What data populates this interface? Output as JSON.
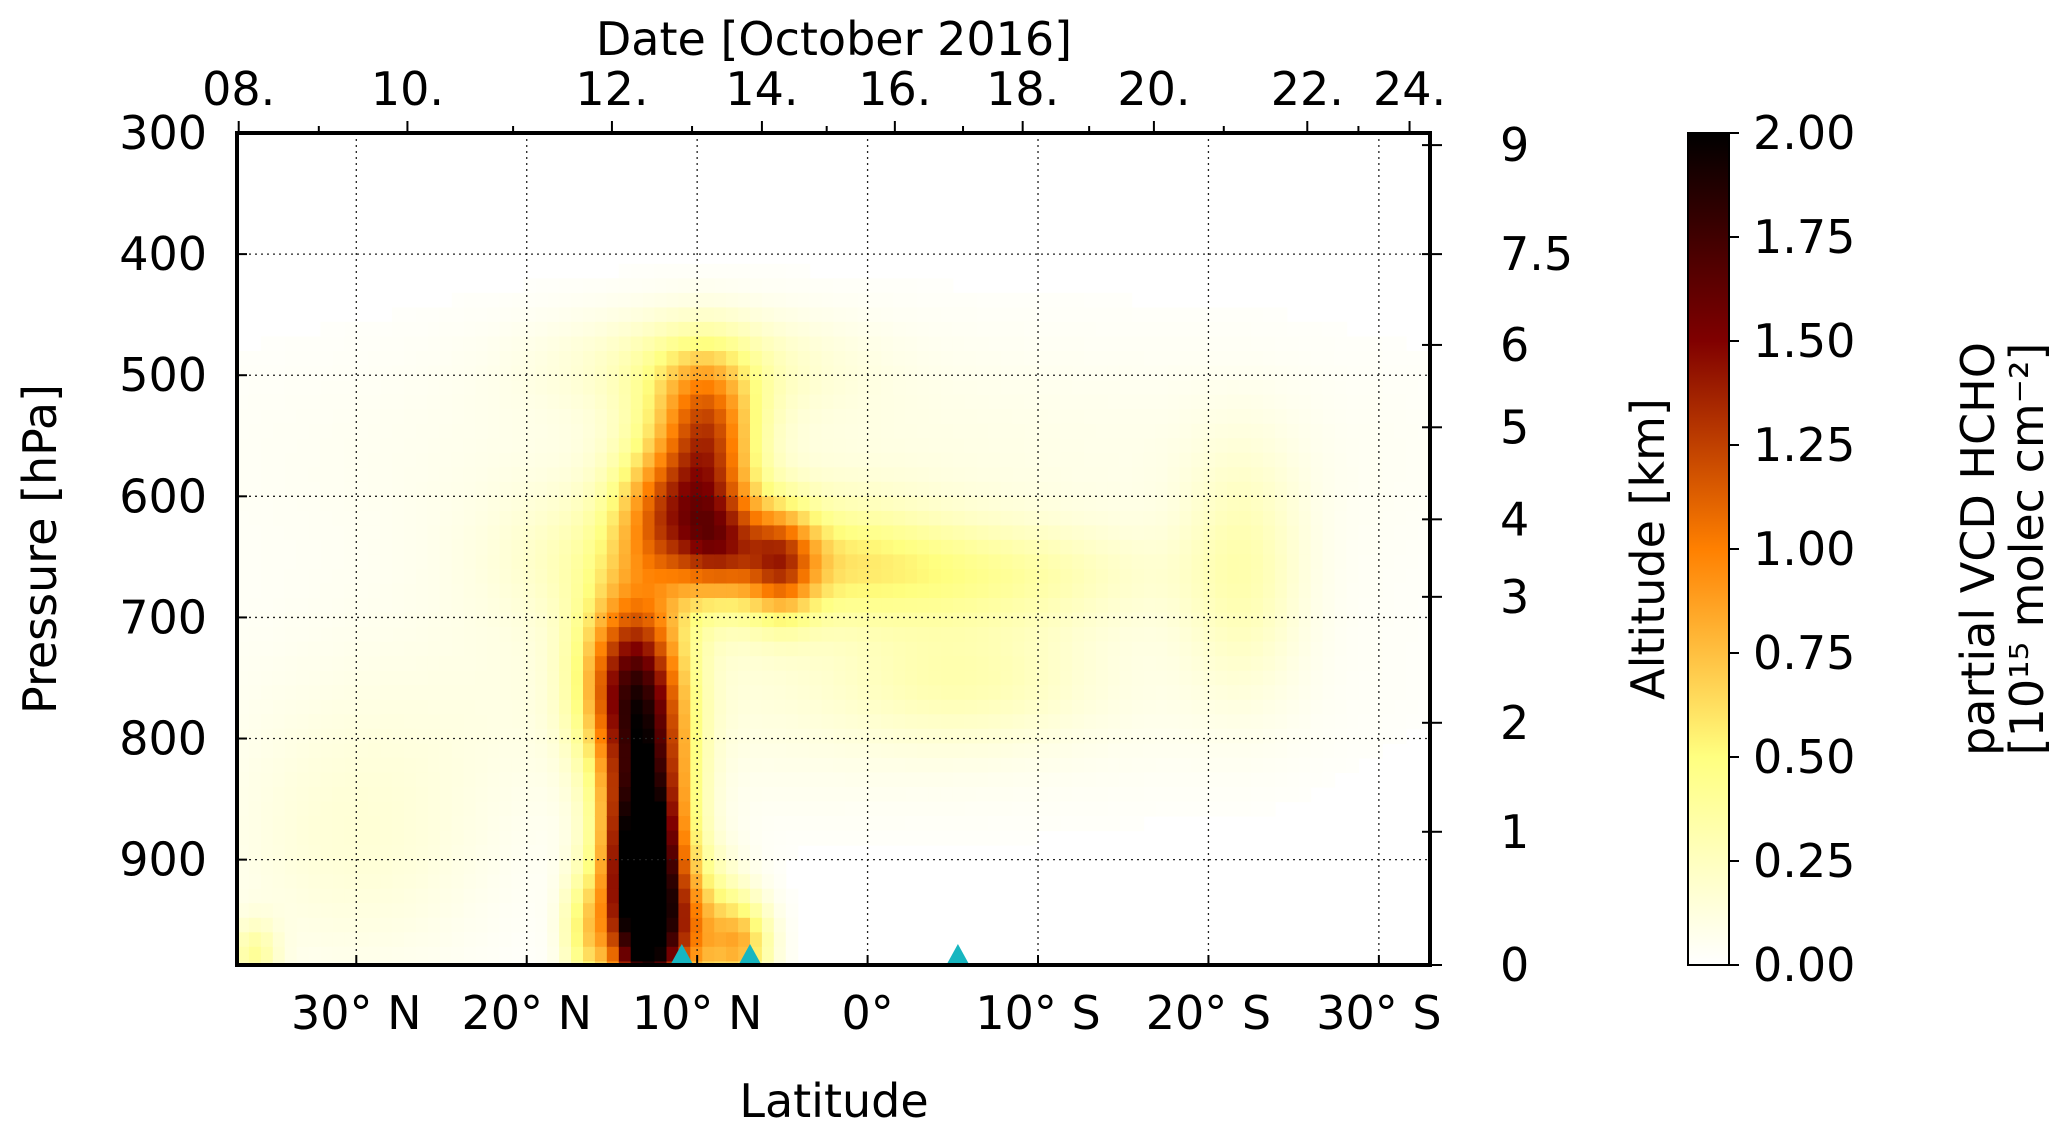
{
  "chart_data": {
    "type": "heatmap",
    "title": "",
    "xlabel": "Latitude",
    "ylabel": "Pressure [hPa]",
    "top_xlabel": "Date [October 2016]",
    "right_ylabel": "Altitude [km]",
    "colorbar_label": "partial VCD HCHO",
    "colorbar_unit": "[10¹⁵ molec cm⁻²]",
    "colormap": "afmhot_r",
    "xlim": [
      37,
      -33
    ],
    "ylim": [
      300,
      987
    ],
    "clim": [
      0,
      2
    ],
    "y_reversed": true,
    "grid": true,
    "x_ticks": [
      {
        "value": 30,
        "label": "30° N"
      },
      {
        "value": 20,
        "label": "20° N"
      },
      {
        "value": 10,
        "label": "10° N"
      },
      {
        "value": 0,
        "label": "0°"
      },
      {
        "value": -10,
        "label": "10° S"
      },
      {
        "value": -20,
        "label": "20° S"
      },
      {
        "value": -30,
        "label": "30° S"
      }
    ],
    "y_ticks": [
      300,
      400,
      500,
      600,
      700,
      800,
      900
    ],
    "top_ticks": [
      {
        "value": 36.9,
        "label": "08."
      },
      {
        "value": 27.0,
        "label": "10."
      },
      {
        "value": 15.0,
        "label": "12."
      },
      {
        "value": 6.2,
        "label": "14."
      },
      {
        "value": -1.6,
        "label": "16."
      },
      {
        "value": -9.1,
        "label": "18."
      },
      {
        "value": -16.8,
        "label": "20."
      },
      {
        "value": -25.8,
        "label": "22."
      },
      {
        "value": -31.8,
        "label": "24."
      }
    ],
    "top_minor_ticks": [
      32.2,
      20.8,
      10.3,
      2.4,
      -5.6,
      -13.0,
      -20.9,
      -28.8
    ],
    "altitude_ticks": [
      {
        "pressure": 310,
        "label": "9"
      },
      {
        "pressure": 400,
        "label": "7.5"
      },
      {
        "pressure": 475,
        "label": "6"
      },
      {
        "pressure": 543,
        "label": "5"
      },
      {
        "pressure": 619,
        "label": "4"
      },
      {
        "pressure": 683,
        "label": "3"
      },
      {
        "pressure": 787,
        "label": "2"
      },
      {
        "pressure": 877,
        "label": "1"
      },
      {
        "pressure": 987,
        "label": "0"
      }
    ],
    "colorbar_ticks": [
      "0.00",
      "0.25",
      "0.50",
      "0.75",
      "1.00",
      "1.25",
      "1.50",
      "1.75",
      "2.00"
    ],
    "marker_color": "#17b6c0",
    "markers": [
      {
        "lat": 10.9,
        "pressure": 987
      },
      {
        "lat": 6.9,
        "pressure": 987
      },
      {
        "lat": -5.3,
        "pressure": 987
      }
    ],
    "features": [
      {
        "lat": 13.2,
        "p": 935,
        "slat": 1.4,
        "sp": 70,
        "v": 1.85
      },
      {
        "lat": 13.0,
        "p": 850,
        "slat": 1.8,
        "sp": 80,
        "v": 1.25
      },
      {
        "lat": 14.0,
        "p": 750,
        "slat": 2.0,
        "sp": 50,
        "v": 1.1
      },
      {
        "lat": 10.5,
        "p": 960,
        "slat": 2.0,
        "sp": 40,
        "v": 0.75
      },
      {
        "lat": 7.3,
        "p": 970,
        "slat": 1.2,
        "sp": 25,
        "v": 0.6
      },
      {
        "lat": 16.5,
        "p": 960,
        "slat": 1.0,
        "sp": 35,
        "v": 0.5
      },
      {
        "lat": 9.3,
        "p": 570,
        "slat": 1.8,
        "sp": 45,
        "v": 0.9
      },
      {
        "lat": 12.0,
        "p": 610,
        "slat": 2.0,
        "sp": 40,
        "v": 0.75
      },
      {
        "lat": 8.5,
        "p": 640,
        "slat": 1.8,
        "sp": 30,
        "v": 0.7
      },
      {
        "lat": 5.0,
        "p": 655,
        "slat": 1.4,
        "sp": 30,
        "v": 0.75
      },
      {
        "lat": 10.0,
        "p": 520,
        "slat": 2.5,
        "sp": 35,
        "v": 0.4
      },
      {
        "lat": 3.0,
        "p": 650,
        "slat": 5.0,
        "sp": 35,
        "v": 0.35
      },
      {
        "lat": -6.0,
        "p": 665,
        "slat": 7.0,
        "sp": 30,
        "v": 0.3
      },
      {
        "lat": 10.0,
        "p": 490,
        "slat": 6.0,
        "sp": 30,
        "v": 0.22
      },
      {
        "lat": 14.0,
        "p": 650,
        "slat": 5.0,
        "sp": 40,
        "v": 0.25
      },
      {
        "lat": -5.5,
        "p": 750,
        "slat": 5.0,
        "sp": 35,
        "v": 0.2
      },
      {
        "lat": -22.0,
        "p": 660,
        "slat": 2.5,
        "sp": 70,
        "v": 0.25
      },
      {
        "lat": 5.0,
        "p": 760,
        "slat": 20.0,
        "sp": 70,
        "v": 0.12
      },
      {
        "lat": 2.0,
        "p": 570,
        "slat": 25.0,
        "sp": 80,
        "v": 0.1
      },
      {
        "lat": 30.0,
        "p": 890,
        "slat": 6.0,
        "sp": 80,
        "v": 0.15
      },
      {
        "lat": 36.0,
        "p": 980,
        "slat": 1.0,
        "sp": 20,
        "v": 0.35
      }
    ]
  }
}
